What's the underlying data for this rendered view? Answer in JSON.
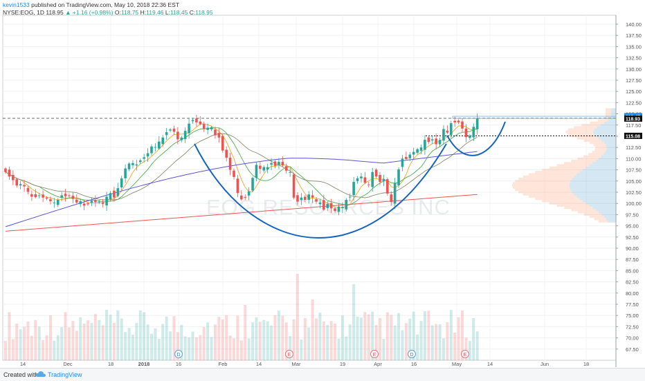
{
  "header": {
    "author": "kevin1533",
    "published": "published on TradingView.com, May 10, 2018 22:36 EST",
    "symbol": "NYSE:EOG, 1D",
    "last": "118.95",
    "change": "+1.16 (+0.98%)",
    "open_label": "O:",
    "open": "118.75",
    "high_label": "H:",
    "high": "119.46",
    "low_label": "L:",
    "low": "118.45",
    "close_label": "C:",
    "close": "118.95"
  },
  "watermark": "EOG RESOURCES INC",
  "footer": {
    "created": "Created with",
    "brand": "TradingView"
  },
  "colors": {
    "up": "#26a69a",
    "down": "#ef5350",
    "cup": "#1565c0",
    "ma_orange": "#f5a623",
    "ma_green": "#4caf50",
    "ma_gray": "#8d8d70",
    "ma_purple": "#5c55d6",
    "ma_red": "#ef5350"
  },
  "chart_data": {
    "type": "candlestick",
    "ylim": [
      65,
      142
    ],
    "y_ticks": [
      67.5,
      70,
      72.5,
      75,
      77.5,
      80,
      82.5,
      85,
      87.5,
      90,
      92.5,
      95,
      97.5,
      100,
      102.5,
      105,
      107.5,
      110,
      112.5,
      115,
      117.5,
      120,
      122.5,
      125,
      127.5,
      130,
      132.5,
      135,
      137.5,
      140
    ],
    "x_ticks": [
      "14",
      "Dec",
      "18",
      "2018",
      "16",
      "Feb",
      "14",
      "Mar",
      "19",
      "Apr",
      "16",
      "May",
      "14",
      "Jun",
      "18"
    ],
    "event_markers": [
      "D",
      "E",
      "E",
      "D",
      "E"
    ],
    "price_tags": [
      {
        "label": "119.47",
        "value": 119.47,
        "color": "#1e88e5"
      },
      {
        "label": "118.95",
        "value": 118.95,
        "color": "#1e88e5"
      },
      {
        "label": "118.93",
        "value": 118.93,
        "color": "#111111"
      },
      {
        "label": "115.08",
        "value": 115.08,
        "color": "#111111"
      }
    ],
    "resistance": 119.0,
    "support": 115.08,
    "close": [
      107.0,
      106.0,
      105.2,
      104.0,
      104.3,
      103.8,
      102.6,
      101.5,
      101.4,
      101.8,
      101.3,
      101.1,
      100.5,
      100.2,
      100.8,
      101.8,
      101.6,
      101.7,
      101.0,
      100.2,
      100.5,
      99.5,
      99.8,
      100.6,
      100.3,
      100.4,
      99.9,
      101.5,
      102.3,
      101.3,
      103.4,
      105.6,
      107.8,
      108.9,
      109.0,
      108.7,
      109.6,
      110.3,
      111.2,
      112.7,
      112.6,
      113.8,
      114.7,
      115.9,
      116.5,
      116.0,
      114.3,
      114.7,
      116.2,
      117.8,
      118.6,
      118.1,
      117.7,
      116.6,
      116.9,
      117.0,
      115.2,
      114.7,
      111.8,
      110.2,
      107.5,
      105.9,
      102.3,
      100.9,
      101.4,
      102.7,
      105.7,
      108.6,
      107.7,
      108.1,
      108.1,
      109.0,
      108.4,
      109.3,
      108.5,
      107.3,
      107.0,
      101.3,
      100.4,
      101.3,
      100.8,
      102.0,
      101.3,
      100.4,
      100.2,
      98.6,
      99.9,
      98.9,
      98.3,
      99.3,
      99.2,
      100.8,
      101.5,
      104.8,
      105.6,
      106.0,
      104.6,
      104.2,
      107.0,
      106.0,
      104.8,
      105.4,
      102.2,
      100.3,
      104.6,
      107.6,
      110.0,
      109.9,
      110.9,
      111.5,
      112.1,
      112.5,
      114.2,
      113.7,
      114.3,
      113.2,
      114.2,
      116.6,
      115.8,
      117.9,
      118.1,
      118.1,
      116.7,
      114.8,
      115.1,
      117.1,
      118.95
    ]
  }
}
